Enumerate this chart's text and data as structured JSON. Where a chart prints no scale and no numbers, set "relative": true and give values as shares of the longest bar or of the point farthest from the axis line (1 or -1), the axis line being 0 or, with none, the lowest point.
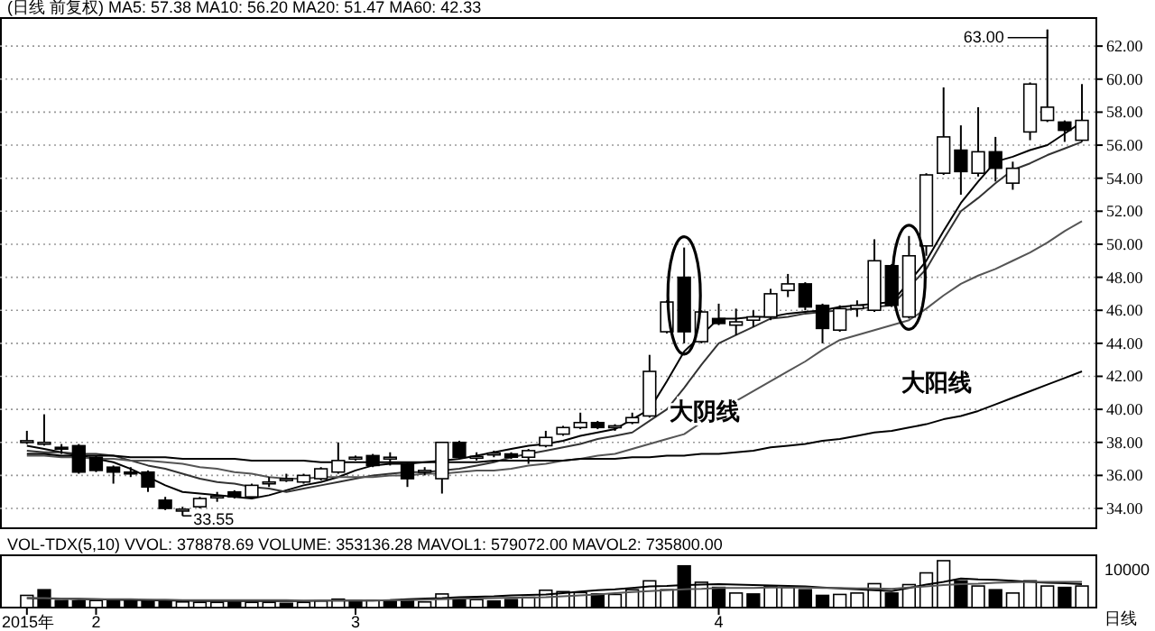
{
  "chart_data": [
    {
      "type": "candlestick",
      "title": "(日线 前复权) MA5: 57.38 MA10: 56.20 MA20: 51.47 MA60: 42.33",
      "color": "#000000",
      "categories": [
        null,
        null,
        null,
        null,
        null,
        null,
        null,
        null,
        null,
        null,
        null,
        null,
        null,
        null,
        null,
        null,
        null,
        null,
        null,
        null,
        null,
        null,
        null,
        null,
        null,
        null,
        null,
        null,
        null,
        null,
        null,
        null,
        null,
        null,
        null,
        null,
        null,
        null,
        null,
        null,
        null,
        null,
        null,
        null,
        null,
        null,
        null,
        null,
        null,
        null,
        null,
        null,
        null,
        null,
        null,
        null,
        null,
        null,
        null,
        null,
        null,
        null
      ],
      "ohlc": [
        [
          38.0,
          38.7,
          37.9,
          38.1
        ],
        [
          37.9,
          39.7,
          37.8,
          38.0
        ],
        [
          37.7,
          37.9,
          37.3,
          37.6
        ],
        [
          37.8,
          37.9,
          36.1,
          36.2
        ],
        [
          37.1,
          37.2,
          36.2,
          36.3
        ],
        [
          36.5,
          36.6,
          35.5,
          36.2
        ],
        [
          36.2,
          36.5,
          35.9,
          36.1
        ],
        [
          36.2,
          36.3,
          35.0,
          35.3
        ],
        [
          34.5,
          34.7,
          33.9,
          34.0
        ],
        [
          33.9,
          34.1,
          33.55,
          33.95
        ],
        [
          34.1,
          34.7,
          34.0,
          34.6
        ],
        [
          34.7,
          35.0,
          34.4,
          34.75
        ],
        [
          35.0,
          35.1,
          34.6,
          34.7
        ],
        [
          34.7,
          35.5,
          34.6,
          35.4
        ],
        [
          35.5,
          35.9,
          35.3,
          35.6
        ],
        [
          35.75,
          36.1,
          35.6,
          35.8
        ],
        [
          35.6,
          36.1,
          35.5,
          36.0
        ],
        [
          35.8,
          36.5,
          35.7,
          36.4
        ],
        [
          36.2,
          38.0,
          36.1,
          36.9
        ],
        [
          37.0,
          37.2,
          36.9,
          37.1
        ],
        [
          37.2,
          37.3,
          36.5,
          36.6
        ],
        [
          37.0,
          37.4,
          36.6,
          37.1
        ],
        [
          36.7,
          36.8,
          35.3,
          35.8
        ],
        [
          36.2,
          36.5,
          36.0,
          36.3
        ],
        [
          35.8,
          38.0,
          34.9,
          38.0
        ],
        [
          38.0,
          38.1,
          37.0,
          37.1
        ],
        [
          37.1,
          37.4,
          36.9,
          37.15
        ],
        [
          37.3,
          37.5,
          37.1,
          37.35
        ],
        [
          37.3,
          37.4,
          37.0,
          37.1
        ],
        [
          37.1,
          37.6,
          36.7,
          37.5
        ],
        [
          37.8,
          38.7,
          37.7,
          38.3
        ],
        [
          38.5,
          39.0,
          38.4,
          38.9
        ],
        [
          38.9,
          39.8,
          38.8,
          39.2
        ],
        [
          39.2,
          39.3,
          38.8,
          38.9
        ],
        [
          38.9,
          39.1,
          38.7,
          39.0
        ],
        [
          39.2,
          39.8,
          39.1,
          39.5
        ],
        [
          39.6,
          43.3,
          39.5,
          42.3
        ],
        [
          44.7,
          46.6,
          44.6,
          46.5
        ],
        [
          48.0,
          49.8,
          44.0,
          44.7
        ],
        [
          44.1,
          46.0,
          44.0,
          45.9
        ],
        [
          45.5,
          46.4,
          45.1,
          45.2
        ],
        [
          45.1,
          46.1,
          44.5,
          45.3
        ],
        [
          45.4,
          46.0,
          45.0,
          45.6
        ],
        [
          45.6,
          47.3,
          45.4,
          47.0
        ],
        [
          47.2,
          48.2,
          46.8,
          47.6
        ],
        [
          47.6,
          47.7,
          46.0,
          46.2
        ],
        [
          46.3,
          46.4,
          44.0,
          44.9
        ],
        [
          44.8,
          46.3,
          44.7,
          46.1
        ],
        [
          46.1,
          46.6,
          45.6,
          46.3
        ],
        [
          46.0,
          50.3,
          45.9,
          49.0
        ],
        [
          48.7,
          48.8,
          46.2,
          46.3
        ],
        [
          45.6,
          50.5,
          45.5,
          49.3
        ],
        [
          49.9,
          54.3,
          49.3,
          54.2
        ],
        [
          54.3,
          59.5,
          54.2,
          56.5
        ],
        [
          55.7,
          57.2,
          53.0,
          54.4
        ],
        [
          54.3,
          58.3,
          54.1,
          55.6
        ],
        [
          55.6,
          56.5,
          53.8,
          54.6
        ],
        [
          53.7,
          55.0,
          53.3,
          54.6
        ],
        [
          56.8,
          59.8,
          56.3,
          59.7
        ],
        [
          57.5,
          63.0,
          57.4,
          58.3
        ],
        [
          57.4,
          57.5,
          56.2,
          56.9
        ],
        [
          56.3,
          59.7,
          56.2,
          57.5
        ]
      ],
      "series": [
        {
          "type": "line",
          "color": "#000000",
          "values": [
            37.8,
            37.6,
            37.4,
            37.2,
            37.0,
            36.8,
            36.4,
            35.9,
            35.4,
            35.0,
            34.9,
            34.8,
            34.7,
            34.6,
            34.8,
            35.1,
            35.4,
            35.6,
            35.9,
            36.3,
            36.6,
            36.7,
            36.7,
            36.8,
            36.9,
            37.0,
            37.2,
            37.4,
            37.6,
            37.8,
            37.9,
            38.1,
            38.4,
            38.6,
            38.8,
            39.4,
            40.0,
            41.7,
            43.5,
            44.5,
            45.5,
            45.5,
            45.6,
            45.6,
            45.8,
            45.9,
            46.0,
            46.2,
            46.3,
            46.4,
            46.5,
            47.7,
            49.0,
            50.8,
            52.5,
            53.8,
            55.0,
            55.3,
            55.7,
            56.0,
            56.7,
            57.4
          ]
        },
        {
          "type": "line",
          "color": "#333333",
          "values": [
            37.5,
            37.4,
            37.4,
            37.3,
            37.3,
            37.2,
            36.9,
            36.6,
            36.4,
            36.1,
            35.8,
            35.6,
            35.5,
            35.3,
            35.2,
            35.0,
            35.2,
            35.4,
            35.6,
            35.8,
            36.0,
            36.1,
            36.2,
            36.2,
            36.3,
            36.4,
            36.6,
            36.8,
            37.1,
            37.3,
            37.5,
            37.7,
            37.9,
            38.2,
            38.4,
            38.6,
            39.3,
            40.0,
            41.3,
            42.7,
            44.0,
            44.5,
            45.0,
            45.5,
            45.6,
            45.8,
            45.9,
            46.0,
            46.1,
            46.2,
            46.3,
            47.4,
            48.5,
            50.3,
            52.0,
            52.8,
            53.7,
            54.5,
            54.9,
            55.4,
            55.8,
            56.2
          ]
        },
        {
          "type": "line",
          "color": "#555555",
          "values": [
            37.2,
            37.2,
            37.1,
            37.1,
            37.0,
            37.0,
            36.9,
            36.9,
            36.8,
            36.7,
            36.5,
            36.4,
            36.2,
            36.1,
            35.9,
            35.8,
            35.8,
            35.9,
            35.9,
            35.9,
            35.9,
            36.0,
            36.0,
            36.1,
            36.1,
            36.2,
            36.3,
            36.3,
            36.4,
            36.6,
            36.7,
            36.9,
            37.0,
            37.2,
            37.3,
            37.6,
            37.9,
            38.2,
            38.5,
            39.2,
            39.8,
            40.5,
            41.1,
            41.7,
            42.3,
            42.9,
            43.6,
            44.2,
            44.5,
            44.8,
            45.1,
            45.4,
            46.1,
            46.9,
            47.6,
            48.1,
            48.5,
            49.0,
            49.5,
            50.1,
            50.8,
            51.4
          ]
        },
        {
          "type": "line",
          "color": "#000000",
          "values": [
            37.3,
            37.3,
            37.2,
            37.2,
            37.2,
            37.2,
            37.1,
            37.1,
            37.1,
            37.0,
            37.0,
            37.0,
            37.0,
            36.9,
            36.9,
            36.9,
            36.9,
            36.8,
            36.8,
            36.8,
            36.8,
            36.8,
            36.8,
            36.8,
            36.8,
            36.8,
            36.8,
            36.9,
            36.9,
            36.9,
            36.9,
            36.9,
            37.0,
            37.0,
            37.0,
            37.1,
            37.1,
            37.2,
            37.2,
            37.3,
            37.3,
            37.4,
            37.5,
            37.7,
            37.8,
            37.9,
            38.1,
            38.2,
            38.4,
            38.6,
            38.7,
            38.9,
            39.1,
            39.4,
            39.6,
            39.9,
            40.3,
            40.7,
            41.1,
            41.5,
            41.9,
            42.3
          ]
        }
      ],
      "ylim": [
        32.8,
        63.7
      ],
      "yticks": [
        {
          "value": 34,
          "label": "34.00"
        },
        {
          "value": 36,
          "label": "36.00"
        },
        {
          "value": 38,
          "label": "38.00"
        },
        {
          "value": 40,
          "label": "40.00"
        },
        {
          "value": 42,
          "label": "42.00"
        },
        {
          "value": 44,
          "label": "44.00"
        },
        {
          "value": 46,
          "label": "46.00"
        },
        {
          "value": 48,
          "label": "48.00"
        },
        {
          "value": 50,
          "label": "50.00"
        },
        {
          "value": 52,
          "label": "52.00"
        },
        {
          "value": 54,
          "label": "54.00"
        },
        {
          "value": 56,
          "label": "56.00"
        },
        {
          "value": 58,
          "label": "58.00"
        },
        {
          "value": 60,
          "label": "60.00"
        },
        {
          "value": 62,
          "label": "62.00"
        }
      ],
      "grid": "y",
      "tick_labels": "y",
      "annotations": [
        "大阴线",
        "大阳线",
        "63.00",
        "33.55"
      ]
    },
    {
      "type": "bar",
      "title": "VOL-TDX(5,10) VVOL: 378878.69 VOLUME: 353136.28 MAVOL1: 579072.00 MAVOL2: 735800.00",
      "relative": true,
      "categories": [
        "2015年",
        null,
        null,
        null,
        "2",
        null,
        null,
        null,
        null,
        null,
        null,
        null,
        null,
        null,
        null,
        null,
        null,
        null,
        null,
        "3",
        null,
        null,
        null,
        null,
        null,
        null,
        null,
        null,
        null,
        null,
        null,
        null,
        null,
        null,
        null,
        null,
        null,
        null,
        null,
        null,
        "4",
        null,
        null,
        null,
        null,
        null,
        null,
        null,
        null,
        null,
        null,
        null,
        null,
        null,
        null,
        null,
        null,
        null,
        null,
        null,
        null,
        null
      ],
      "series": [
        {
          "type": "bar",
          "values": [
            0.26,
            0.38,
            0.15,
            0.14,
            0.15,
            0.15,
            0.15,
            0.15,
            0.15,
            0.12,
            0.11,
            0.11,
            0.11,
            0.11,
            0.11,
            0.09,
            0.11,
            0.14,
            0.18,
            0.15,
            0.15,
            0.15,
            0.17,
            0.12,
            0.29,
            0.2,
            0.17,
            0.14,
            0.17,
            0.22,
            0.37,
            0.34,
            0.32,
            0.29,
            0.28,
            0.38,
            0.57,
            0.38,
            0.89,
            0.54,
            0.43,
            0.31,
            0.29,
            0.46,
            0.43,
            0.38,
            0.26,
            0.28,
            0.31,
            0.51,
            0.31,
            0.49,
            0.74,
            1,
            0.57,
            0.46,
            0.38,
            0.31,
            0.57,
            0.46,
            0.43,
            0.46
          ],
          "colors": [
            "#ffffff",
            "#000000",
            "#000000",
            "#000000",
            "#ffffff",
            "#000000",
            "#000000",
            "#000000",
            "#000000",
            "#ffffff",
            "#ffffff",
            "#ffffff",
            "#000000",
            "#ffffff",
            "#ffffff",
            "#000000",
            "#ffffff",
            "#ffffff",
            "#ffffff",
            "#000000",
            "#ffffff",
            "#000000",
            "#000000",
            "#ffffff",
            "#ffffff",
            "#000000",
            "#ffffff",
            "#000000",
            "#000000",
            "#ffffff",
            "#ffffff",
            "#ffffff",
            "#ffffff",
            "#000000",
            "#ffffff",
            "#ffffff",
            "#ffffff",
            "#ffffff",
            "#000000",
            "#ffffff",
            "#000000",
            "#ffffff",
            "#000000",
            "#ffffff",
            "#ffffff",
            "#000000",
            "#000000",
            "#ffffff",
            "#ffffff",
            "#ffffff",
            "#000000",
            "#ffffff",
            "#ffffff",
            "#ffffff",
            "#000000",
            "#ffffff",
            "#000000",
            "#ffffff",
            "#ffffff",
            "#ffffff",
            "#000000",
            "#ffffff"
          ]
        },
        {
          "type": "line",
          "color": "#000000",
          "values": [
            0.2,
            0.19,
            0.19,
            0.18,
            0.18,
            0.17,
            0.16,
            0.16,
            0.15,
            0.15,
            0.14,
            0.14,
            0.14,
            0.14,
            0.14,
            0.14,
            0.14,
            0.15,
            0.15,
            0.15,
            0.15,
            0.16,
            0.18,
            0.19,
            0.2,
            0.22,
            0.23,
            0.24,
            0.26,
            0.27,
            0.28,
            0.31,
            0.34,
            0.37,
            0.39,
            0.42,
            0.45,
            0.46,
            0.48,
            0.49,
            0.5,
            0.49,
            0.48,
            0.47,
            0.46,
            0.45,
            0.43,
            0.41,
            0.39,
            0.37,
            0.35,
            0.42,
            0.49,
            0.55,
            0.62,
            0.6,
            0.59,
            0.57,
            0.55,
            0.53,
            0.52,
            0.5
          ]
        },
        {
          "type": "line",
          "color": "#555555",
          "values": [
            0.2,
            0.2,
            0.19,
            0.19,
            0.18,
            0.18,
            0.18,
            0.17,
            0.17,
            0.16,
            0.16,
            0.16,
            0.16,
            0.16,
            0.16,
            0.16,
            0.15,
            0.15,
            0.15,
            0.15,
            0.15,
            0.16,
            0.16,
            0.17,
            0.18,
            0.19,
            0.19,
            0.2,
            0.21,
            0.21,
            0.22,
            0.24,
            0.26,
            0.28,
            0.31,
            0.33,
            0.35,
            0.37,
            0.39,
            0.4,
            0.42,
            0.42,
            0.42,
            0.43,
            0.43,
            0.43,
            0.42,
            0.42,
            0.41,
            0.41,
            0.4,
            0.43,
            0.45,
            0.48,
            0.5,
            0.51,
            0.53,
            0.54,
            0.55,
            0.55,
            0.55,
            0.55
          ]
        }
      ],
      "tick_labels": "x",
      "annotations": [
        "10000",
        "日线"
      ]
    }
  ]
}
